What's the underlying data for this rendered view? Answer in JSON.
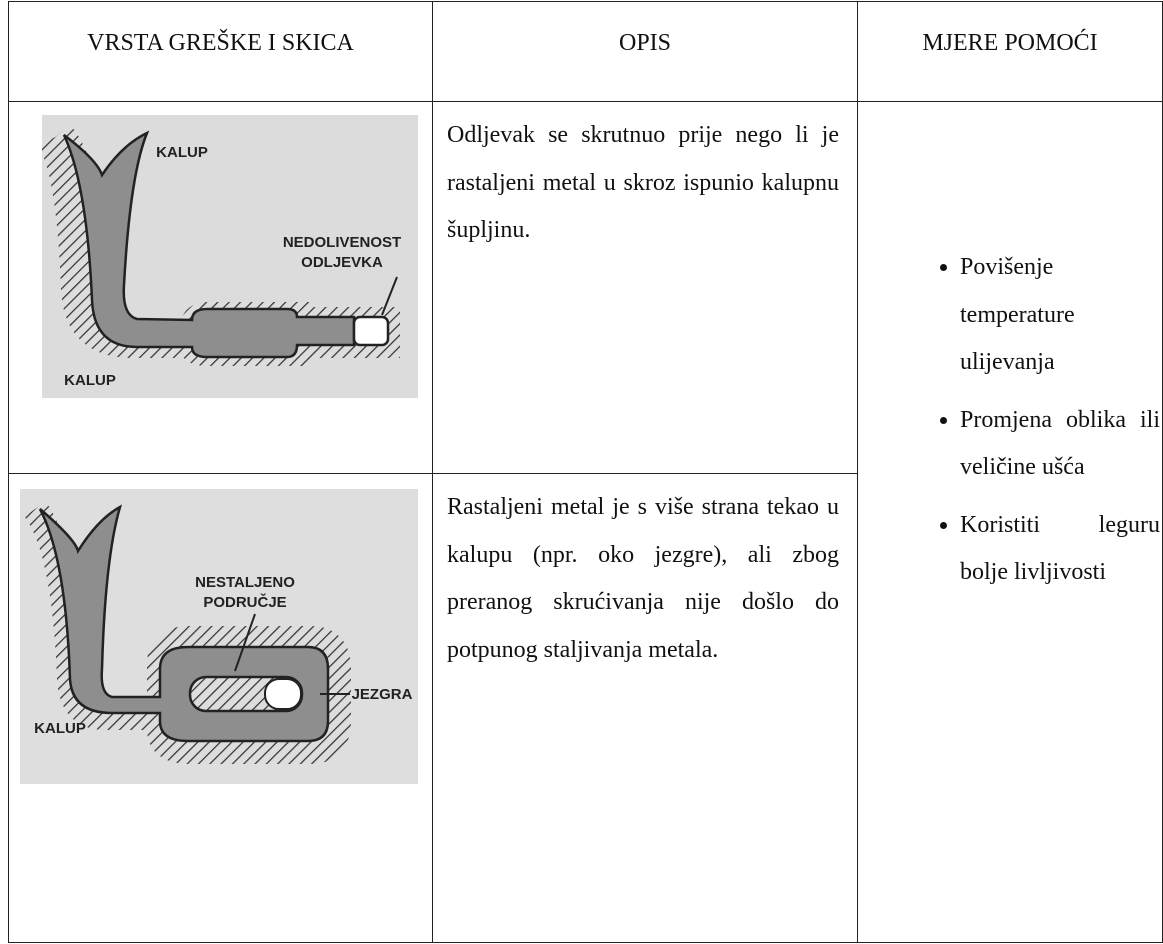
{
  "table": {
    "header": [
      "VRSTA GREŠKE I SKICA",
      "OPIS",
      "MJERE POMOĆI"
    ],
    "rows": [
      {
        "sketch_labels": [
          "KALUP",
          "NEDOLIVENOST",
          "ODLJEVKA",
          "KALUP"
        ],
        "description": "Odljevak se skrutnuo prije nego li je rastaljeni metal u skroz ispunio kalupnu šupljinu."
      },
      {
        "sketch_labels": [
          "NESTALJENO",
          "PODRUČJE",
          "JEZGRA",
          "KALUP"
        ],
        "description": "Rastaljeni metal je s više strana tekao u kalupu (npr. oko jezgre), ali zbog preranog skrućivanja nije došlo do potpunog staljivanja metala."
      }
    ],
    "remedies": [
      "Povišenje temperature ulijevanja",
      "Promjena oblika ili veličine ušća",
      "Koristiti leguru bolje livljivosti"
    ]
  }
}
